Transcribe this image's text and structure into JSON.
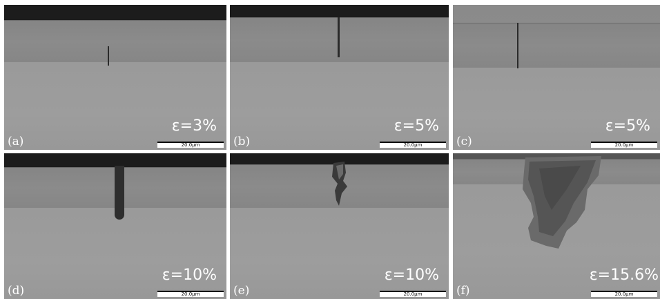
{
  "panels": [
    {
      "letter": "(a)",
      "strain": "ε=3%",
      "scale": "20.0μm"
    },
    {
      "letter": "(b)",
      "strain": "ε=5%",
      "scale": "20.0μm"
    },
    {
      "letter": "(c)",
      "strain": "ε=5%",
      "scale": "20.0μm"
    },
    {
      "letter": "(d)",
      "strain": "ε=10%",
      "scale": "20.0μm"
    },
    {
      "letter": "(e)",
      "strain": "ε=10%",
      "scale": "20.0μm"
    },
    {
      "letter": "(f)",
      "strain": "ε=15.6%",
      "scale": "20.0μm"
    }
  ]
}
